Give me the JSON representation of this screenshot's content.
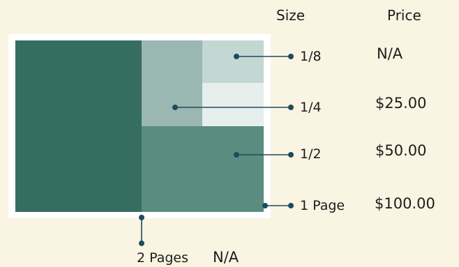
{
  "headers": {
    "size": "Size",
    "price": "Price"
  },
  "ad_sizes": [
    {
      "size": "1/8",
      "price": "N/A"
    },
    {
      "size": "1/4",
      "price": "$25.00"
    },
    {
      "size": "1/2",
      "price": "$50.00"
    },
    {
      "size": "1 Page",
      "price": "$100.00"
    },
    {
      "size": "2 Pages",
      "price": "N/A"
    }
  ],
  "colors": {
    "background": "#faf4e2",
    "page_border": "#ffffff",
    "two_pages": "#356e61",
    "half_page": "#5a8d7f",
    "quarter_page": "#9ab8b1",
    "eighth_page": "#c4d8d3",
    "empty_slot": "#e7efed",
    "leader_line": "#1f4b5c"
  }
}
